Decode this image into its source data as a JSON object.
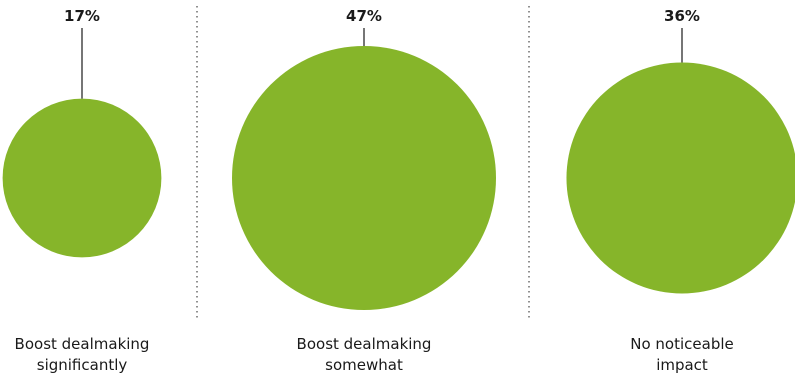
{
  "chart_data": {
    "type": "bubble",
    "color": "#86b52a",
    "divider_color": "#555555",
    "pointer_color": "#1a1a1a",
    "categories": [
      {
        "lines": [
          "Boost dealmaking",
          "significantly"
        ],
        "value": 17,
        "value_label": "17%"
      },
      {
        "lines": [
          "Boost dealmaking",
          "somewhat"
        ],
        "value": 47,
        "value_label": "47%"
      },
      {
        "lines": [
          "No noticeable",
          "impact"
        ],
        "value": 36,
        "value_label": "36%"
      }
    ]
  }
}
